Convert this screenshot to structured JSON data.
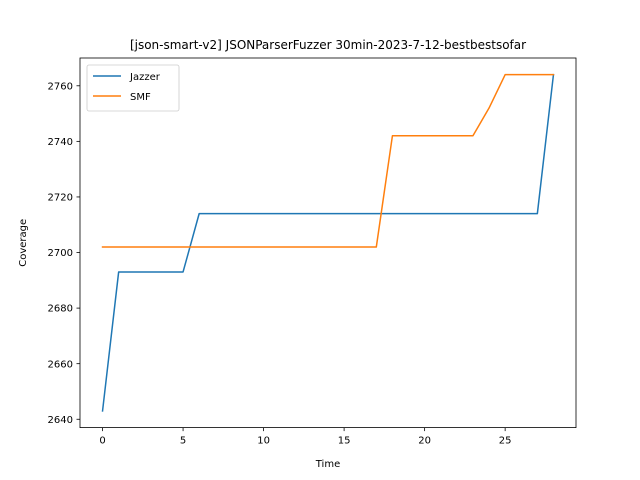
{
  "chart_data": {
    "type": "line",
    "title": "[json-smart-v2] JSONParserFuzzer 30min-2023-7-12-bestbestsofar",
    "xlabel": "Time",
    "ylabel": "Coverage",
    "xlim": [
      -1.4,
      29.4
    ],
    "ylim": [
      2637,
      2770
    ],
    "xticks": [
      0,
      5,
      10,
      15,
      20,
      25
    ],
    "yticks": [
      2640,
      2660,
      2680,
      2700,
      2720,
      2740,
      2760
    ],
    "grid": false,
    "legend_position": "top-left",
    "series": [
      {
        "name": "Jazzer",
        "color": "#1f77b4",
        "x": [
          0,
          1,
          2,
          3,
          4,
          5,
          6,
          7,
          8,
          9,
          10,
          11,
          12,
          13,
          14,
          15,
          16,
          17,
          18,
          19,
          20,
          21,
          22,
          23,
          24,
          25,
          26,
          27,
          28
        ],
        "y": [
          2643,
          2693,
          2693,
          2693,
          2693,
          2693,
          2714,
          2714,
          2714,
          2714,
          2714,
          2714,
          2714,
          2714,
          2714,
          2714,
          2714,
          2714,
          2714,
          2714,
          2714,
          2714,
          2714,
          2714,
          2714,
          2714,
          2714,
          2714,
          2764
        ]
      },
      {
        "name": "SMF",
        "color": "#ff7f0e",
        "x": [
          0,
          1,
          2,
          3,
          4,
          5,
          6,
          7,
          8,
          9,
          10,
          11,
          12,
          13,
          14,
          15,
          16,
          17,
          18,
          19,
          20,
          21,
          22,
          23,
          24,
          25,
          26,
          27,
          28
        ],
        "y": [
          2702,
          2702,
          2702,
          2702,
          2702,
          2702,
          2702,
          2702,
          2702,
          2702,
          2702,
          2702,
          2702,
          2702,
          2702,
          2702,
          2702,
          2702,
          2742,
          2742,
          2742,
          2742,
          2742,
          2742,
          2752,
          2764,
          2764,
          2764,
          2764
        ]
      }
    ]
  }
}
